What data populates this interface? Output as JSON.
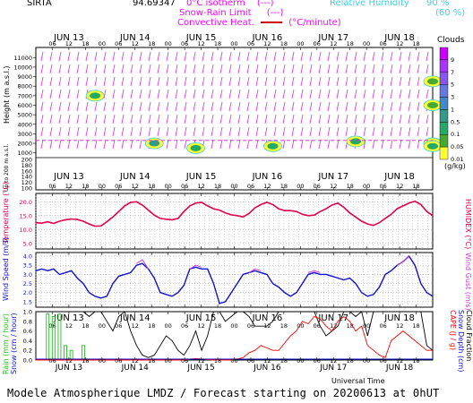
{
  "header": {
    "site": "SIRTA",
    "coord": "94.69347",
    "legend_isotherm": "0°C isotherm",
    "legend_snow_rain": "Snow-Rain Limit",
    "legend_convective": "Convective Heat.",
    "legend_convective_unit": "(°C/minute)",
    "legend_isotherm_box": "(---)",
    "legend_snow_box": "(---)",
    "legend_rh_title": "Relative Humidity",
    "legend_rh_90": "90 %",
    "legend_rh_60": "(60 %)"
  },
  "days": [
    "JUN 13",
    "JUN 14",
    "JUN 15",
    "JUN 16",
    "JUN 17",
    "JUN 18"
  ],
  "hours": [
    "06",
    "12",
    "18",
    "00"
  ],
  "footer": "Modele Atmospherique LMDZ / Forecast starting on 20200613 at 0hUT",
  "xaxis_label": "Universal Time",
  "colors": {
    "isotherm": "#ff00ff",
    "rh": "#40e0e0",
    "temp": "#e0004a",
    "wind": "#1010d0",
    "gust": "#d040d0",
    "cape": "#ff0000",
    "rain": "#20c020",
    "snowdepth": "#000000"
  },
  "chart_data": [
    {
      "type": "heatmap",
      "title": "Clouds",
      "ylabel": "Height (m a.s.l.)",
      "ylabel2": "Up to 200 m a.s.l.",
      "yticks_upper": [
        1000,
        2000,
        3000,
        4000,
        5000,
        6000,
        7000,
        8000,
        9000,
        10000,
        11000
      ],
      "yticks_lower": [
        100,
        120,
        140,
        160,
        180,
        200
      ],
      "colorbar_title": "Clouds",
      "colorbar_unit": "(g/kg)",
      "colorbar_ticks": [
        "9",
        "7",
        "5",
        "3",
        "1",
        "0.5",
        "0.1",
        "0.05",
        "0.01"
      ],
      "colorbar_colors": [
        "#cc00ff",
        "#aa33ff",
        "#8855ee",
        "#6677dd",
        "#4488cc",
        "#339988",
        "#22aa66",
        "#44aa33",
        "#ffff33"
      ],
      "clouds": [
        {
          "t": 10,
          "z": 7000,
          "v": 0.1
        },
        {
          "t": 20,
          "z": 2000,
          "v": 0.5
        },
        {
          "t": 27,
          "z": 1500,
          "v": 0.1
        },
        {
          "t": 40,
          "z": 1700,
          "v": 0.1
        },
        {
          "t": 54,
          "z": 2200,
          "v": 0.1
        },
        {
          "t": 70,
          "z": 2000,
          "v": 0.1
        },
        {
          "t": 88,
          "z": 2000,
          "v": 0.1
        },
        {
          "t": 100,
          "z": 6000,
          "v": 0.05
        },
        {
          "t": 108,
          "z": 2000,
          "v": 0.1
        },
        {
          "t": 126,
          "z": 1700,
          "v": 0.1
        },
        {
          "t": 130,
          "z": 8500,
          "v": 0.05
        }
      ]
    },
    {
      "type": "line",
      "ylabel": "Temperature (°C)",
      "ylabel_right": "HUMIDEX (°C)",
      "yticks": [
        5.0,
        10.0,
        15.0,
        20.0
      ],
      "ylim": [
        3,
        23
      ],
      "series": [
        {
          "key": "temp",
          "values": [
            12.5,
            12.3,
            12.8,
            12.2,
            13.0,
            13.5,
            13.8,
            13.6,
            13.0,
            12.0,
            11.2,
            11.3,
            12.8,
            14.5,
            16.5,
            18.5,
            19.8,
            20.0,
            18.8,
            17.0,
            15.2,
            14.0,
            13.7,
            13.5,
            14.0,
            16.5,
            18.5,
            19.5,
            19.8,
            18.5,
            17.5,
            17.0,
            16.0,
            15.3,
            15.0,
            14.5,
            15.8,
            17.8,
            19.0,
            19.8,
            19.0,
            17.5,
            16.8,
            16.8,
            16.5,
            15.5,
            15.0,
            15.2,
            16.5,
            17.5,
            18.8,
            19.5,
            18.0,
            16.0,
            14.5,
            13.0,
            12.0,
            11.5,
            12.5,
            14.0,
            15.5,
            17.5,
            18.5,
            19.5,
            20.2,
            19.0,
            16.5,
            15.0
          ]
        }
      ]
    },
    {
      "type": "line",
      "ylabel": "Wind Speed (m/s)",
      "ylabel_right": "Wind Gust (m/s)",
      "yticks": [
        1.5,
        2.0,
        2.5,
        3.0,
        3.5,
        4.0
      ],
      "ylim": [
        1.2,
        4.2
      ],
      "series": [
        {
          "key": "wind",
          "values": [
            3.2,
            3.3,
            3.2,
            3.3,
            3.0,
            3.1,
            3.2,
            2.8,
            2.5,
            2.0,
            1.8,
            1.7,
            1.8,
            2.5,
            2.9,
            3.0,
            3.1,
            3.5,
            3.6,
            3.3,
            2.8,
            2.0,
            1.9,
            1.8,
            2.0,
            2.4,
            3.3,
            3.4,
            3.3,
            3.3,
            2.5,
            1.4,
            1.5,
            2.0,
            2.5,
            3.0,
            3.1,
            3.2,
            3.1,
            3.0,
            2.5,
            2.3,
            2.0,
            1.8,
            2.0,
            2.5,
            3.0,
            3.1,
            3.0,
            3.0,
            2.9,
            2.8,
            2.7,
            2.8,
            2.5,
            2.0,
            1.8,
            1.9,
            2.3,
            3.0,
            3.2,
            3.5,
            3.7,
            4.0,
            3.5,
            2.5,
            2.0,
            1.8
          ]
        },
        {
          "key": "gust",
          "values": [
            null,
            null,
            null,
            null,
            null,
            null,
            null,
            null,
            null,
            null,
            null,
            null,
            null,
            null,
            null,
            null,
            null,
            3.6,
            3.8,
            3.3,
            null,
            null,
            null,
            null,
            null,
            null,
            3.3,
            3.5,
            3.4,
            null,
            null,
            null,
            null,
            null,
            null,
            null,
            3.1,
            3.3,
            3.2,
            null,
            null,
            null,
            null,
            null,
            null,
            null,
            3.1,
            3.2,
            3.1,
            null,
            null,
            null,
            null,
            null,
            null,
            null,
            null,
            null,
            null,
            null,
            null,
            3.5,
            3.7,
            4.0,
            null,
            null,
            null,
            null
          ]
        }
      ]
    },
    {
      "type": "bar",
      "ylabel": "Rain (mm / hour)",
      "ylabel2": "Snow (cm / hour)",
      "ylabel_right": "CAPE (J / g)",
      "ylabel_right2": "Snow Depth (cm)",
      "ylabel_right3": "Cloud Fraction",
      "yticks": [
        0.0,
        0.2,
        0.4,
        0.6,
        0.8,
        1.0
      ],
      "ylim": [
        0,
        1
      ],
      "rain_bars": [
        {
          "i": 2,
          "v": 0.95
        },
        {
          "i": 3,
          "v": 0.9
        },
        {
          "i": 4,
          "v": 0.95
        },
        {
          "i": 5,
          "v": 0.3
        },
        {
          "i": 6,
          "v": 0.2
        },
        {
          "i": 8,
          "v": 0.3
        }
      ],
      "cloudfrac": [
        1.0,
        1.0,
        1.0,
        1.0,
        1.0,
        1.0,
        1.0,
        1.0,
        1.0,
        0.9,
        1.0,
        1.0,
        0.8,
        0.6,
        0.9,
        1.0,
        0.6,
        0.3,
        0.1,
        0.05,
        0.1,
        0.3,
        0.5,
        0.4,
        0.2,
        0.1,
        0.3,
        0.6,
        0.2,
        0.5,
        1.0,
        1.0,
        0.8,
        0.9,
        1.0,
        1.0,
        0.9,
        0.7,
        0.7,
        0.7,
        0.8,
        1.0,
        1.0,
        1.0,
        1.0,
        1.0,
        1.0,
        1.0,
        0.7,
        0.5,
        0.6,
        0.7,
        1.0,
        1.0,
        0.9,
        1.0,
        0.5,
        1.0,
        1.0,
        1.0,
        1.0,
        1.0,
        1.0,
        1.0,
        1.0,
        1.0,
        0.3,
        0.2
      ],
      "cape": [
        0,
        0,
        0,
        0,
        0,
        0,
        0,
        0,
        0,
        0,
        0,
        0,
        0,
        0,
        0,
        0,
        0,
        0,
        0,
        0,
        0,
        0,
        0,
        0,
        0,
        0,
        0.02,
        0.03,
        0.02,
        0.01,
        0,
        0,
        0,
        0,
        0.02,
        0.05,
        0.15,
        0.2,
        0.3,
        0.25,
        0.2,
        0.2,
        0.35,
        0.5,
        0.6,
        0.8,
        0.75,
        0.9,
        0.85,
        0.7,
        0.6,
        0.8,
        0.9,
        0.8,
        0.6,
        0.7,
        0.3,
        0.2,
        0.1,
        0.05,
        0.4,
        0.5,
        0.6,
        0.5,
        0.4,
        0.3,
        0.2,
        0.2
      ]
    }
  ]
}
